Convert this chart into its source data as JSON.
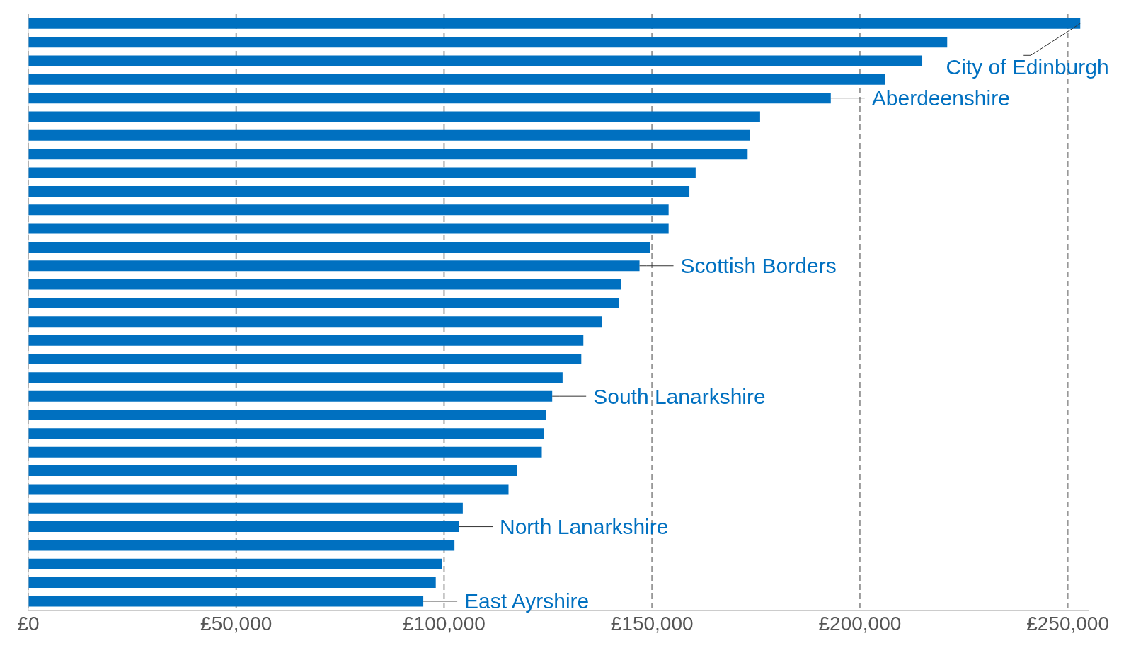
{
  "chart_data": {
    "type": "bar",
    "orientation": "horizontal",
    "color": "#0070c0",
    "categories": [
      null,
      null,
      null,
      null,
      null,
      null,
      null,
      null,
      null,
      null,
      null,
      null,
      null,
      null,
      null,
      null,
      null,
      null,
      null,
      null,
      null,
      null,
      null,
      null,
      null,
      null,
      null,
      null,
      null,
      null,
      null,
      null
    ],
    "values": [
      253000,
      221000,
      215000,
      206000,
      193000,
      176000,
      173500,
      173000,
      160500,
      159000,
      154000,
      154000,
      149500,
      147000,
      142500,
      142000,
      138000,
      133500,
      133000,
      128500,
      126000,
      124500,
      124000,
      123500,
      117500,
      115500,
      104500,
      103500,
      102500,
      99500,
      98000,
      95000
    ],
    "xlim": [
      0,
      255000
    ],
    "xticks": [
      {
        "value": 0,
        "label": "£0"
      },
      {
        "value": 50000,
        "label": "£50,000"
      },
      {
        "value": 100000,
        "label": "£100,000"
      },
      {
        "value": 150000,
        "label": "£150,000"
      },
      {
        "value": 200000,
        "label": "£200,000"
      },
      {
        "value": 250000,
        "label": "£250,000"
      }
    ],
    "grid": "x",
    "annotations": [
      {
        "text": "City of Edinburgh",
        "x": 253000
      },
      {
        "text": "Aberdeenshire",
        "x": 193000
      },
      {
        "text": "Scottish Borders",
        "x": 147000
      },
      {
        "text": "South Lanarkshire",
        "x": 126000
      },
      {
        "text": "North Lanarkshire",
        "x": 103500
      },
      {
        "text": "East Ayrshire",
        "x": 95000
      }
    ]
  }
}
